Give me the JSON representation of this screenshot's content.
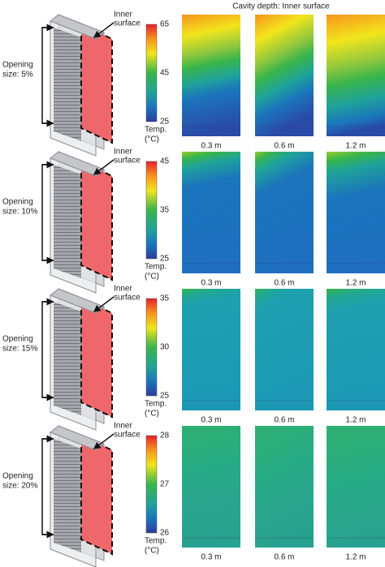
{
  "title": "Cavity depth: Inner surface",
  "rows": [
    {
      "opening_label": [
        "Opening",
        "size: 5%"
      ],
      "surface_label": [
        "Inner",
        "surface"
      ],
      "colorbar": {
        "ticks": [
          65,
          45,
          25
        ],
        "label": [
          "Temp.",
          "(°C)"
        ]
      },
      "columns": [
        "0.3 m",
        "0.6 m",
        "1.2 m"
      ]
    },
    {
      "opening_label": [
        "Opening",
        "size: 10%"
      ],
      "surface_label": [
        "Inner",
        "surface"
      ],
      "colorbar": {
        "ticks": [
          45,
          35,
          25
        ],
        "label": [
          "Temp.",
          "(°C)"
        ]
      },
      "columns": [
        "0.3 m",
        "0.6 m",
        "1.2 m"
      ]
    },
    {
      "opening_label": [
        "Opening",
        "size: 15%"
      ],
      "surface_label": [
        "Inner",
        "surface"
      ],
      "colorbar": {
        "ticks": [
          35,
          30,
          25
        ],
        "label": [
          "Temp.",
          "(°C)"
        ]
      },
      "columns": [
        "0.3 m",
        "0.6 m",
        "1.2 m"
      ]
    },
    {
      "opening_label": [
        "Opening",
        "size: 20%"
      ],
      "surface_label": [
        "Inner",
        "surface"
      ],
      "colorbar": {
        "ticks": [
          28,
          27,
          26
        ],
        "label": [
          "Temp.",
          "(°C)"
        ]
      },
      "columns": [
        "0.3 m",
        "0.6 m",
        "1.2 m"
      ]
    }
  ]
}
